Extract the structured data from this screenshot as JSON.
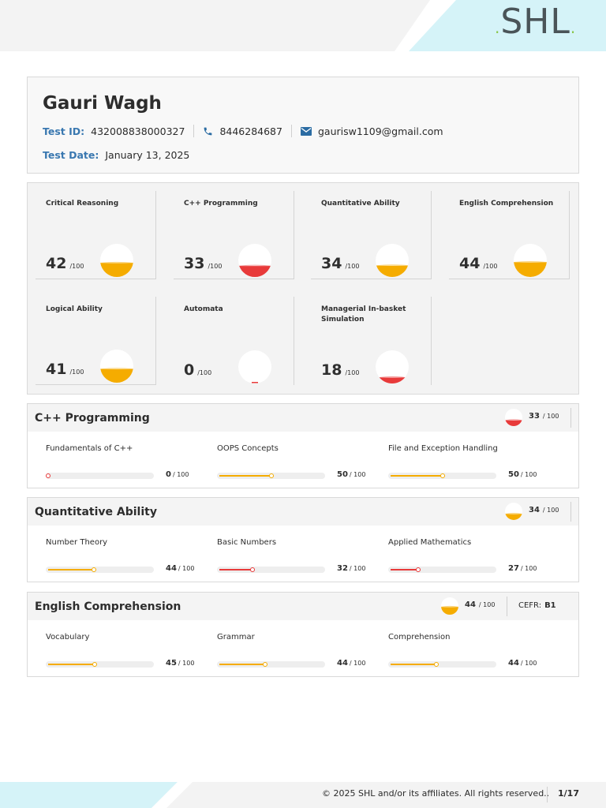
{
  "brand": {
    "name": "SHL",
    "accent": "#8ac64a",
    "band": "#d5f3f8"
  },
  "candidate": {
    "name": "Gauri Wagh",
    "test_id_label": "Test ID:",
    "test_id": "432008838000327",
    "phone": "8446284687",
    "email": "gaurisw1109@gmail.com",
    "test_date_label": "Test Date:",
    "test_date": "January 13, 2025",
    "phone_icon": "phone-icon",
    "email_icon": "envelope-icon"
  },
  "score_colors": {
    "orange": "#f5ac00",
    "red": "#e83a3a"
  },
  "scores": [
    {
      "title": "Critical Reasoning",
      "score": "42",
      "max": "/100",
      "fraction": 0.42,
      "color": "#f5ac00"
    },
    {
      "title": "C++ Programming",
      "score": "33",
      "max": "/100",
      "fraction": 0.33,
      "color": "#e83a3a"
    },
    {
      "title": "Quantitative Ability",
      "score": "34",
      "max": "/100",
      "fraction": 0.34,
      "color": "#f5ac00"
    },
    {
      "title": "English Comprehension",
      "score": "44",
      "max": "/100",
      "fraction": 0.44,
      "color": "#f5ac00"
    },
    {
      "title": "Logical Ability",
      "score": "41",
      "max": "/100",
      "fraction": 0.41,
      "color": "#f5ac00"
    },
    {
      "title": "Automata",
      "score": "0",
      "max": "/100",
      "fraction": 0.0,
      "color": "#e83a3a"
    },
    {
      "title": "Managerial In-basket Simulation",
      "score": "18",
      "max": "/100",
      "fraction": 0.18,
      "color": "#e83a3a"
    }
  ],
  "sections": [
    {
      "title": "C++ Programming",
      "score": "33",
      "max": "/ 100",
      "fraction": 0.33,
      "color": "#e83a3a",
      "subs": [
        {
          "name": "Fundamentals of C++",
          "score": "0",
          "max": "/ 100",
          "fraction": 0.0,
          "color": "#e83a3a"
        },
        {
          "name": "OOPS Concepts",
          "score": "50",
          "max": "/ 100",
          "fraction": 0.5,
          "color": "#f5ac00"
        },
        {
          "name": "File and Exception Handling",
          "score": "50",
          "max": "/ 100",
          "fraction": 0.5,
          "color": "#f5ac00"
        }
      ]
    },
    {
      "title": "Quantitative Ability",
      "score": "34",
      "max": "/ 100",
      "fraction": 0.34,
      "color": "#f5ac00",
      "subs": [
        {
          "name": "Number Theory",
          "score": "44",
          "max": "/ 100",
          "fraction": 0.44,
          "color": "#f5ac00"
        },
        {
          "name": "Basic Numbers",
          "score": "32",
          "max": "/ 100",
          "fraction": 0.32,
          "color": "#e83a3a"
        },
        {
          "name": "Applied Mathematics",
          "score": "27",
          "max": "/ 100",
          "fraction": 0.27,
          "color": "#e83a3a"
        }
      ]
    },
    {
      "title": "English Comprehension",
      "score": "44",
      "max": "/ 100",
      "fraction": 0.44,
      "color": "#f5ac00",
      "cefr_label": "CEFR:",
      "cefr_value": "B1",
      "subs": [
        {
          "name": "Vocabulary",
          "score": "45",
          "max": "/ 100",
          "fraction": 0.45,
          "color": "#f5ac00"
        },
        {
          "name": "Grammar",
          "score": "44",
          "max": "/ 100",
          "fraction": 0.44,
          "color": "#f5ac00"
        },
        {
          "name": "Comprehension",
          "score": "44",
          "max": "/ 100",
          "fraction": 0.44,
          "color": "#f5ac00"
        }
      ]
    }
  ],
  "footer": {
    "copyright": "© 2025 SHL and/or its affiliates. All rights reserved..",
    "page": "1/17"
  }
}
